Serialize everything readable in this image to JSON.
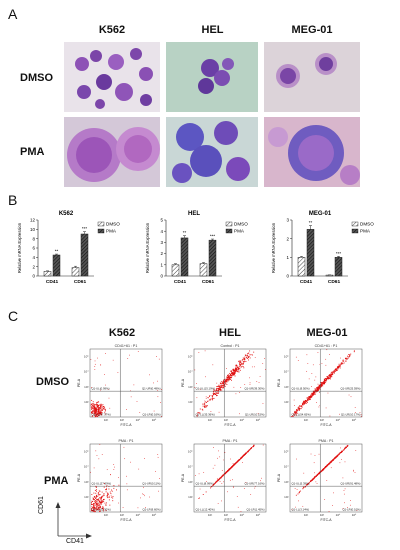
{
  "panels": {
    "a": "A",
    "b": "B",
    "c": "C"
  },
  "cell_lines": [
    "K562",
    "HEL",
    "MEG-01"
  ],
  "treatments": [
    "DMSO",
    "PMA"
  ],
  "colors": {
    "cell": "#8a4fb0",
    "cell_dark": "#4a2a8a",
    "bg_k562": "#e7e0ea",
    "bg_hel": "#b9cfc2",
    "bg_meg": "#ddd2d8",
    "dot": "#e01010"
  },
  "bar_legend": {
    "dmso": "DMSO",
    "pma": "PMA"
  },
  "chart_data": [
    {
      "type": "bar",
      "title": "K562",
      "ylabel": "Relative mRNA Expression",
      "categories": [
        "CD41",
        "CD61"
      ],
      "ylim": [
        0,
        12
      ],
      "yticks": [
        0,
        2,
        4,
        6,
        8,
        10,
        12
      ],
      "series": [
        {
          "name": "DMSO",
          "values": [
            1.0,
            1.8
          ],
          "errors": [
            0.1,
            0.3
          ]
        },
        {
          "name": "PMA",
          "values": [
            4.5,
            9.0
          ],
          "errors": [
            0.2,
            0.5
          ]
        }
      ],
      "sig": [
        "**",
        "***"
      ]
    },
    {
      "type": "bar",
      "title": "HEL",
      "ylabel": "Relative mRNA Expression",
      "categories": [
        "CD41",
        "CD61"
      ],
      "ylim": [
        0,
        5
      ],
      "yticks": [
        0,
        1,
        2,
        3,
        4,
        5
      ],
      "series": [
        {
          "name": "DMSO",
          "values": [
            1.0,
            1.1
          ],
          "errors": [
            0.1,
            0.1
          ]
        },
        {
          "name": "PMA",
          "values": [
            3.4,
            3.2
          ],
          "errors": [
            0.2,
            0.1
          ]
        }
      ],
      "sig": [
        "**",
        "***"
      ]
    },
    {
      "type": "bar",
      "title": "MEG-01",
      "ylabel": "Relative mRNA Expression",
      "categories": [
        "CD41",
        "CD61"
      ],
      "ylim": [
        0,
        3
      ],
      "yticks": [
        0,
        1,
        2,
        3
      ],
      "series": [
        {
          "name": "DMSO",
          "values": [
            1.0,
            0.05
          ],
          "errors": [
            0.05,
            0.01
          ]
        },
        {
          "name": "PMA",
          "values": [
            2.5,
            1.0
          ],
          "errors": [
            0.2,
            0.05
          ]
        }
      ],
      "sig": [
        "**",
        "***"
      ]
    }
  ],
  "flow": {
    "xlabel": "FITC-A",
    "ylabel": "PE-A",
    "ticks": [
      "10²",
      "10³",
      "10⁴",
      "10⁵"
    ],
    "outer_x": "CD41",
    "outer_y": "CD61",
    "plots": [
      {
        "header": "CD41+61 : P1",
        "q1_ul": "Q1-UL(0.99%)",
        "q1_ur": "Q1-UR(0.49%)",
        "q1_ll": "Q1-LL(97.37%)",
        "q1_lr": "Q1-LR(0.16%)"
      },
      {
        "header": "Control : P1",
        "q1_ul": "Q1-UL(15.19%)",
        "q1_ur": "Q1-UR(39.30%)",
        "q1_ll": "Q1-LL(35.36%)",
        "q1_lr": "Q1-LR(10.15%)"
      },
      {
        "header": "CD41+61 : P1",
        "q1_ul": "Q1-UL(9.50%)",
        "q1_ur": "Q1-UR(25.59%)",
        "q1_ll": "Q1-LL(54.65%)",
        "q1_lr": "Q1-LR(10.17%)"
      },
      {
        "header": "PMA : P1",
        "q1_ul": "Q1-UL(27.99%)",
        "q1_ur": "Q1-UR(0.11%)",
        "q1_ll": "Q1-LL(62.30%)",
        "q1_lr": "Q1-LR(9.60%)"
      },
      {
        "header": "PMA : P1",
        "q1_ul": "Q1-UL(8.99%)",
        "q1_ur": "Q1-UR(77.16%)",
        "q1_ll": "Q1-LL(12.40%)",
        "q1_lr": "Q1-LR(1.45%)"
      },
      {
        "header": "PMA : P1",
        "q1_ul": "Q1-UL(5.39%)",
        "q1_ur": "Q1-UR(91.48%)",
        "q1_ll": "Q1-LL(3.14%)",
        "q1_lr": "Q1-LR(0.10%)"
      }
    ]
  }
}
